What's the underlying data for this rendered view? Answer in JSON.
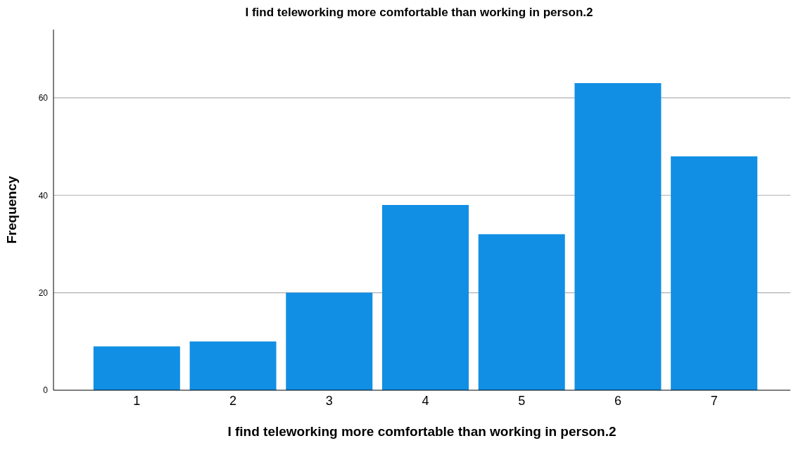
{
  "chart_data": {
    "type": "bar",
    "title": "I find teleworking more comfortable than working in person.2",
    "xlabel": "I find teleworking more comfortable than working in person.2",
    "ylabel": "Frequency",
    "categories": [
      "1",
      "2",
      "3",
      "4",
      "5",
      "6",
      "7"
    ],
    "values": [
      9,
      10,
      20,
      38,
      32,
      63,
      48
    ],
    "color": "#118fe4",
    "ylim": [
      0,
      74
    ],
    "yticks": [
      0,
      20,
      40,
      60
    ],
    "grid": "y"
  }
}
